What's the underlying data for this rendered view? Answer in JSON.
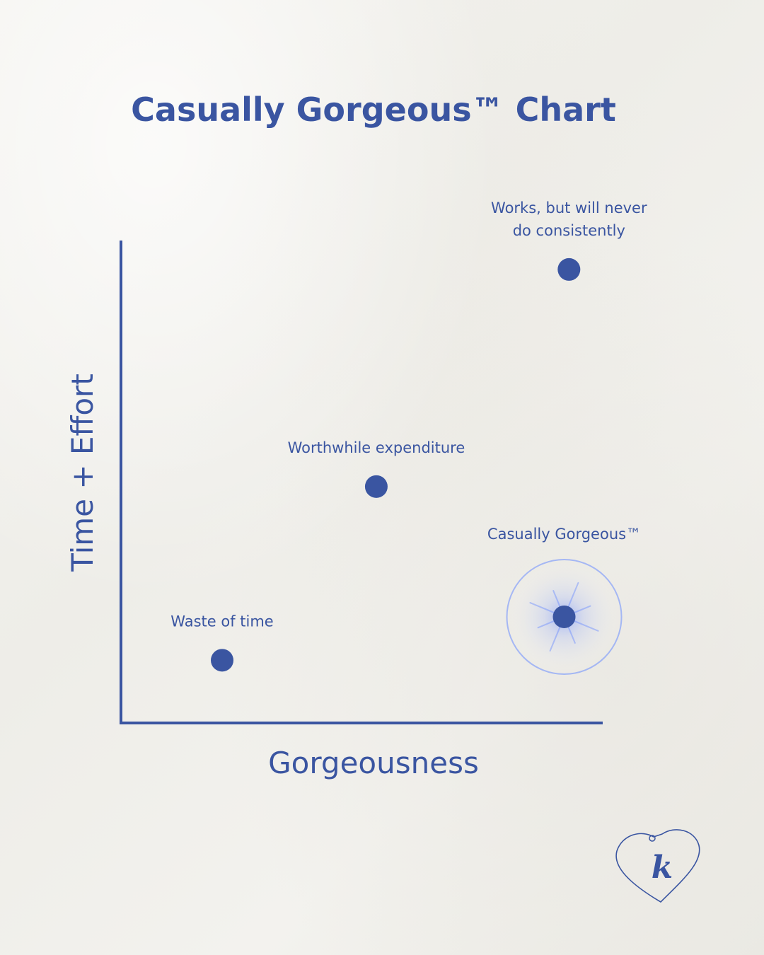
{
  "title": "Casually Gorgeous™ Chart",
  "colors": {
    "accent": "#3a55a1",
    "glow": "#6a8cff",
    "background": "#f1f0ec"
  },
  "chart_data": {
    "type": "scatter",
    "title": "Casually Gorgeous™ Chart",
    "xlabel": "Gorgeousness",
    "ylabel": "Time + Effort",
    "xlim": [
      0,
      10
    ],
    "ylim": [
      0,
      10
    ],
    "grid": false,
    "legend": "none",
    "points": [
      {
        "label": "Works, but will never do consistently",
        "label_lines": [
          "Works, but will never",
          "do consistently"
        ],
        "x": 9.3,
        "y": 9.4,
        "highlight": false
      },
      {
        "label": "Worthwhile expenditure",
        "label_lines": [
          "Worthwhile expenditure"
        ],
        "x": 5.3,
        "y": 4.9,
        "highlight": false
      },
      {
        "label": "Casually Gorgeous™",
        "label_lines": [
          "Casually Gorgeous™"
        ],
        "x": 9.2,
        "y": 2.2,
        "highlight": true
      },
      {
        "label": "Waste of time",
        "label_lines": [
          "Waste of time"
        ],
        "x": 2.1,
        "y": 1.3,
        "highlight": false
      }
    ]
  },
  "logo": {
    "icon": "heart-tag-icon",
    "text": "k"
  }
}
